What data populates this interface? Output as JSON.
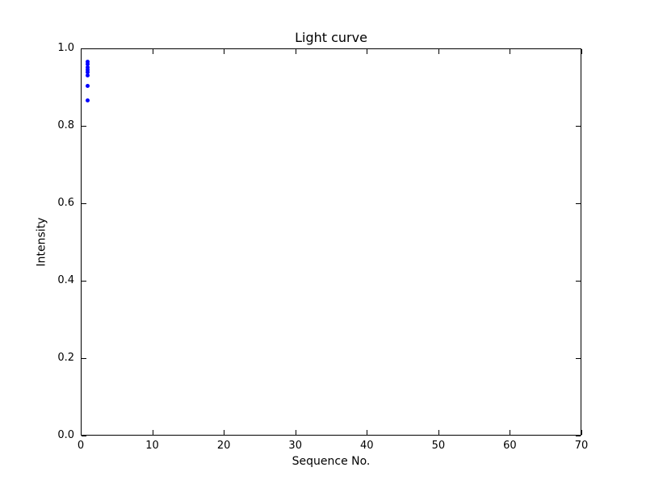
{
  "figure": {
    "background": "#ffffff",
    "frame_color": "#000000"
  },
  "chart_data": {
    "type": "scatter",
    "title": "Light curve",
    "xlabel": "Sequence No.",
    "ylabel": "Intensity",
    "xlim": [
      0,
      70
    ],
    "ylim": [
      0.0,
      1.0
    ],
    "xticks": [
      0,
      10,
      20,
      30,
      40,
      50,
      60,
      70
    ],
    "xtick_labels": [
      "0",
      "10",
      "20",
      "30",
      "40",
      "50",
      "60",
      "70"
    ],
    "yticks": [
      0.0,
      0.2,
      0.4,
      0.6,
      0.8,
      1.0
    ],
    "ytick_labels": [
      "0.0",
      "0.2",
      "0.4",
      "0.6",
      "0.8",
      "1.0"
    ],
    "grid": false,
    "legend": null,
    "marker": "dot",
    "marker_color": "#0000ff",
    "series": [
      {
        "name": "intensity",
        "points": [
          {
            "x": 1,
            "y": 0.966
          },
          {
            "x": 1,
            "y": 0.959
          },
          {
            "x": 1,
            "y": 0.952
          },
          {
            "x": 1,
            "y": 0.945
          },
          {
            "x": 1,
            "y": 0.938
          },
          {
            "x": 1,
            "y": 0.931
          },
          {
            "x": 1,
            "y": 0.904
          },
          {
            "x": 1,
            "y": 0.865
          }
        ]
      }
    ]
  }
}
